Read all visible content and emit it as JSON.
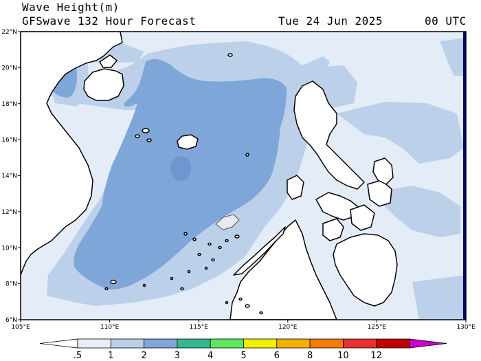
{
  "title": {
    "line1": "Wave Height(m)",
    "line2": "GFSwave 132 Hour Forecast",
    "date": "Tue 24 Jun 2025",
    "time": "00 UTC"
  },
  "map": {
    "lon_range": [
      105,
      130
    ],
    "lat_range": [
      6,
      22
    ],
    "lon_ticks": [
      "105°E",
      "110°E",
      "115°E",
      "120°E",
      "125°E",
      "130°E"
    ],
    "lat_ticks": [
      "6°N",
      "8°N",
      "10°N",
      "12°N",
      "14°N",
      "16°N",
      "18°N",
      "20°N",
      "22°N"
    ]
  },
  "colorbar": {
    "labels": [
      ".5",
      "1",
      "2",
      "3",
      "4",
      "5",
      "6",
      "8",
      "10",
      "12"
    ],
    "colors": [
      "#e8eff8",
      "#bcd0ea",
      "#7fa6d8",
      "#34b88f",
      "#5ee85e",
      "#f0f000",
      "#f5b000",
      "#f57c00",
      "#e83030",
      "#c00000"
    ],
    "under_color": "#ffffff",
    "over_color": "#cc00cc"
  },
  "colors": {
    "land": "#ffffff",
    "level_0_5": "#e3ecf7",
    "level_1": "#bcd0ea",
    "level_2": "#7fa6d8",
    "east_edge": "#000080"
  }
}
